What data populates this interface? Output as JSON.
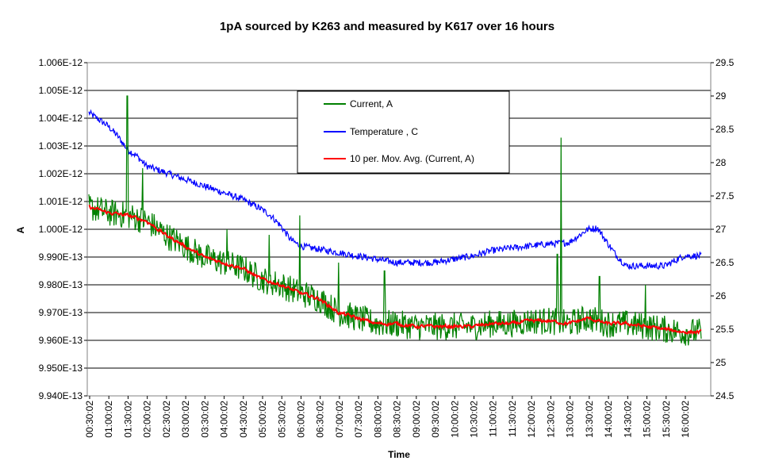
{
  "chart_data": {
    "type": "line",
    "title": "1pA sourced by K263 and measured by K617 over 16 hours",
    "xlabel": "Time",
    "ylabel": "A",
    "y2label": "",
    "x_ticks": [
      "00:30:02",
      "01:00:02",
      "01:30:02",
      "02:00:02",
      "02:30:02",
      "03:00:02",
      "03:30:02",
      "04:00:02",
      "04:30:02",
      "05:00:02",
      "05:30:02",
      "06:00:02",
      "06:30:02",
      "07:00:02",
      "07:30:02",
      "08:00:02",
      "08:30:02",
      "09:00:02",
      "09:30:02",
      "10:00:02",
      "10:30:02",
      "11:00:02",
      "11:30:02",
      "12:00:02",
      "12:30:02",
      "13:00:02",
      "13:30:02",
      "14:00:02",
      "14:30:02",
      "15:00:02",
      "15:30:02",
      "16:00:02"
    ],
    "y_ticks": [
      "9.940E-13",
      "9.950E-13",
      "9.960E-13",
      "9.970E-13",
      "9.980E-13",
      "9.990E-13",
      "1.000E-12",
      "1.001E-12",
      "1.002E-12",
      "1.003E-12",
      "1.004E-12",
      "1.005E-12",
      "1.006E-12"
    ],
    "y2_ticks": [
      "24.5",
      "25",
      "25.5",
      "26",
      "26.5",
      "27",
      "27.5",
      "28",
      "28.5",
      "29",
      "29.5"
    ],
    "ylim": [
      0.994,
      1.006
    ],
    "y_unit_note": "left-axis values in pA (1 pA = 1.000E-12 A)",
    "y2lim": [
      24.5,
      29.5
    ],
    "x_range_hours": [
      0.5,
      16.45
    ],
    "grid": "horizontal major gridlines",
    "legend_position": "top-center",
    "series": [
      {
        "name": "Current, A",
        "axis": "left",
        "color": "#008000",
        "x": [
          0.5,
          1.0,
          1.5,
          2.0,
          2.5,
          3.0,
          3.5,
          4.0,
          4.5,
          5.0,
          5.5,
          6.0,
          6.5,
          7.0,
          7.5,
          8.0,
          8.5,
          9.0,
          9.5,
          10.0,
          10.5,
          11.0,
          11.5,
          12.0,
          12.5,
          13.0,
          13.5,
          14.0,
          14.5,
          15.0,
          15.5,
          16.0,
          16.4
        ],
        "values": [
          1.0008,
          1.0006,
          1.0005,
          1.0003,
          0.9998,
          0.9994,
          0.999,
          0.9988,
          0.9986,
          0.9982,
          0.998,
          0.9977,
          0.9975,
          0.997,
          0.9968,
          0.9966,
          0.9966,
          0.9965,
          0.9965,
          0.9965,
          0.9965,
          0.9966,
          0.9966,
          0.9967,
          0.9967,
          0.9966,
          0.9968,
          0.9966,
          0.9966,
          0.9965,
          0.9964,
          0.9963,
          0.9963
        ],
        "spikes": [
          [
            1.5,
            1.0048
          ],
          [
            1.9,
            1.0022
          ],
          [
            4.1,
            1.0
          ],
          [
            5.2,
            0.9998
          ],
          [
            6.0,
            1.0005
          ],
          [
            7.0,
            0.9988
          ],
          [
            8.2,
            0.9985
          ],
          [
            12.7,
            0.9991
          ],
          [
            12.8,
            1.0033
          ],
          [
            13.8,
            0.9983
          ],
          [
            15.0,
            0.998
          ]
        ],
        "noise_amplitude": 0.0005
      },
      {
        "name": "Temperature , C",
        "axis": "right",
        "color": "#0000ff",
        "x": [
          0.5,
          0.75,
          1.0,
          1.25,
          1.5,
          1.75,
          2.0,
          2.5,
          3.0,
          3.5,
          4.0,
          4.5,
          5.0,
          5.25,
          5.5,
          5.75,
          6.0,
          6.5,
          7.0,
          7.5,
          8.0,
          8.5,
          9.0,
          9.5,
          10.0,
          10.5,
          11.0,
          11.5,
          12.0,
          12.5,
          13.0,
          13.25,
          13.5,
          13.75,
          14.0,
          14.25,
          14.5,
          15.0,
          15.5,
          16.0,
          16.4
        ],
        "values": [
          28.75,
          28.65,
          28.55,
          28.4,
          28.2,
          28.1,
          27.95,
          27.85,
          27.75,
          27.65,
          27.55,
          27.45,
          27.3,
          27.2,
          27.05,
          26.85,
          26.75,
          26.7,
          26.65,
          26.6,
          26.55,
          26.5,
          26.5,
          26.5,
          26.55,
          26.6,
          26.68,
          26.72,
          26.75,
          26.78,
          26.8,
          26.9,
          27.0,
          27.02,
          26.8,
          26.6,
          26.45,
          26.45,
          26.45,
          26.6,
          26.6
        ],
        "noise_amplitude": 0.05
      },
      {
        "name": "10 per. Mov. Avg. (Current, A)",
        "axis": "left",
        "color": "#ff0000",
        "x": [
          0.5,
          1.0,
          1.5,
          2.0,
          2.5,
          3.0,
          3.5,
          4.0,
          4.5,
          5.0,
          5.5,
          6.0,
          6.5,
          7.0,
          7.5,
          8.0,
          8.5,
          9.0,
          9.5,
          10.0,
          10.5,
          11.0,
          11.5,
          12.0,
          12.5,
          13.0,
          13.5,
          14.0,
          14.5,
          15.0,
          15.5,
          16.0,
          16.4
        ],
        "values": [
          1.0008,
          1.0006,
          1.0005,
          1.0003,
          0.9998,
          0.9994,
          0.999,
          0.9988,
          0.9986,
          0.9982,
          0.998,
          0.9977,
          0.9975,
          0.997,
          0.9968,
          0.9966,
          0.9966,
          0.9965,
          0.9965,
          0.9965,
          0.9965,
          0.9966,
          0.9966,
          0.9967,
          0.9967,
          0.9966,
          0.9968,
          0.9966,
          0.9966,
          0.9965,
          0.9964,
          0.9963,
          0.9963
        ],
        "noise_amplitude": 0.00012
      }
    ]
  }
}
